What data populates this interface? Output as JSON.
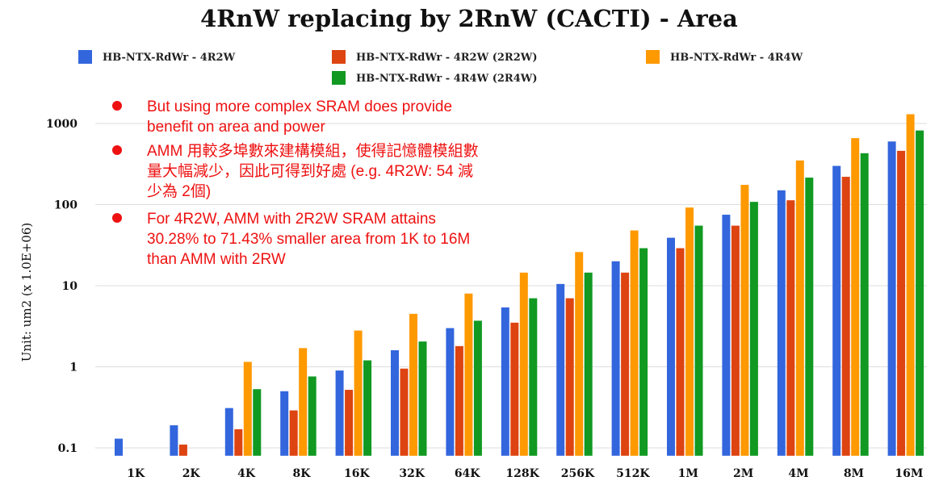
{
  "chart_data": {
    "type": "bar",
    "title": "4RnW replacing by 2RnW (CACTI) - Area",
    "ylabel": "Unit: um2 (x 1.0E+06)",
    "xlabel": "",
    "yscale": "log",
    "ylim": [
      0.08,
      2000
    ],
    "yticks": [
      0.1,
      1,
      10,
      100,
      1000
    ],
    "ytick_labels": [
      "0.1",
      "1",
      "10",
      "100",
      "1000"
    ],
    "grid": true,
    "legend_position": "top",
    "categories": [
      "1K",
      "2K",
      "4K",
      "8K",
      "16K",
      "32K",
      "64K",
      "128K",
      "256K",
      "512K",
      "1M",
      "2M",
      "4M",
      "8M",
      "16M"
    ],
    "series": [
      {
        "name": "HB-NTX-RdWr - 4R2W",
        "color": "#3366dd",
        "values": [
          0.13,
          0.19,
          0.31,
          0.5,
          0.9,
          1.6,
          3.0,
          5.4,
          10.5,
          20,
          39,
          75,
          150,
          300,
          600
        ]
      },
      {
        "name": "HB-NTX-RdWr - 4R2W (2R2W)",
        "color": "#dd4411",
        "values": [
          null,
          0.11,
          0.17,
          0.29,
          0.52,
          0.95,
          1.8,
          3.5,
          7,
          14.5,
          29,
          55,
          113,
          220,
          460
        ]
      },
      {
        "name": "HB-NTX-RdWr - 4R4W",
        "color": "#ff9900",
        "values": [
          null,
          null,
          1.15,
          1.7,
          2.8,
          4.5,
          8,
          14.5,
          26,
          48,
          92,
          175,
          350,
          660,
          1300
        ]
      },
      {
        "name": "HB-NTX-RdWr - 4R4W (2R4W)",
        "color": "#119922",
        "values": [
          null,
          null,
          0.53,
          0.76,
          1.2,
          2.05,
          3.7,
          7,
          14.5,
          29,
          55,
          108,
          215,
          430,
          820
        ]
      }
    ]
  },
  "notes": [
    {
      "lines": [
        "But using more complex SRAM does provide",
        "benefit on area and power"
      ]
    },
    {
      "lines": [
        "AMM 用較多埠數來建構模組，使得記憶體模組數",
        "量大幅減少，因此可得到好處 (e.g. 4R2W: 54 減",
        "少為 2個)"
      ]
    },
    {
      "lines": [
        "For 4R2W, AMM with 2R2W SRAM attains",
        "30.28% to 71.43% smaller area from 1K to 16M",
        "than AMM with 2RW"
      ]
    }
  ],
  "note_bullet_color": "#ee1111"
}
